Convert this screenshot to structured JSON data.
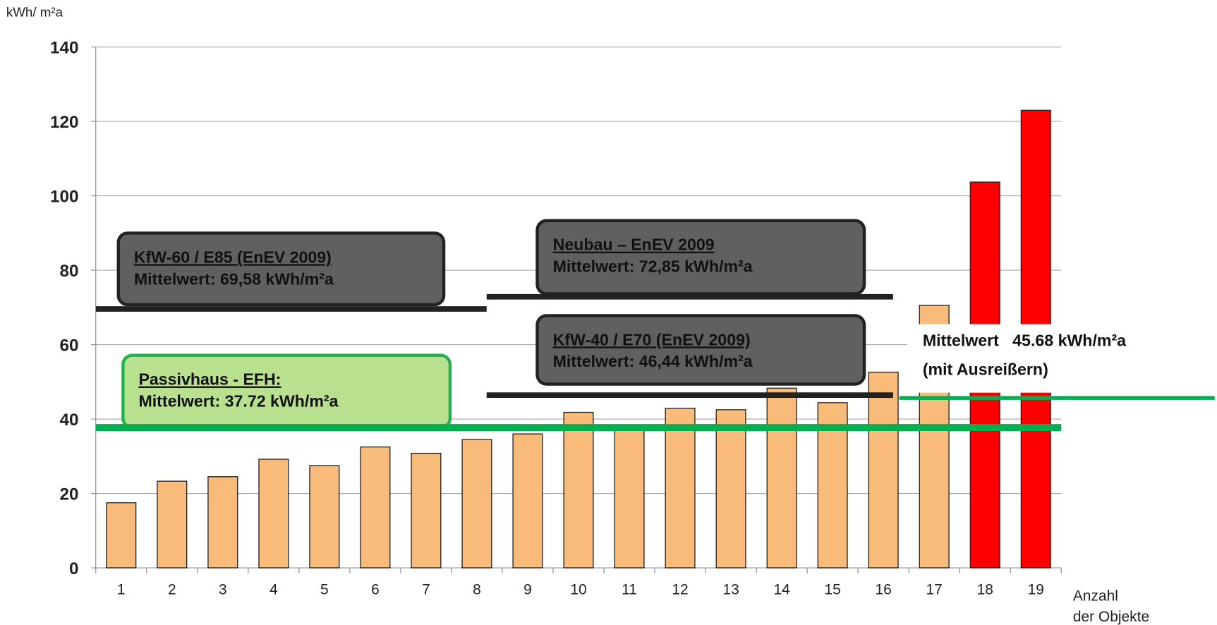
{
  "chart_data": {
    "type": "bar",
    "y_label": "kWh/ m²a",
    "x_label": [
      "Anzahl",
      "der Objekte"
    ],
    "categories": [
      "1",
      "2",
      "3",
      "4",
      "5",
      "6",
      "7",
      "8",
      "9",
      "10",
      "11",
      "12",
      "13",
      "14",
      "15",
      "16",
      "17",
      "18",
      "19"
    ],
    "values": [
      17.5,
      23.3,
      24.5,
      29.2,
      27.5,
      32.5,
      30.8,
      34.5,
      36.0,
      41.8,
      38.0,
      42.9,
      42.5,
      48.3,
      44.4,
      52.6,
      70.6,
      103.7,
      123.0
    ],
    "colors": [
      "#f8bb7a",
      "#f8bb7a",
      "#f8bb7a",
      "#f8bb7a",
      "#f8bb7a",
      "#f8bb7a",
      "#f8bb7a",
      "#f8bb7a",
      "#f8bb7a",
      "#f8bb7a",
      "#f8bb7a",
      "#f8bb7a",
      "#f8bb7a",
      "#f8bb7a",
      "#f8bb7a",
      "#f8bb7a",
      "#f8bb7a",
      "#ff0000",
      "#ff0000"
    ],
    "ylim": [
      0,
      140
    ],
    "yticks": [
      0,
      20,
      40,
      60,
      80,
      100,
      120,
      140
    ],
    "grid": true,
    "reference_lines": [
      {
        "name": "KfW-60 / E85 (EnEV 2009)",
        "label": "Mittelwert: 69,58 kWh/m²a",
        "value": 69.58,
        "color": "#222222"
      },
      {
        "name": "Neubau – EnEV 2009",
        "label": "Mittelwert: 72,85 kWh/m²a",
        "value": 72.85,
        "color": "#222222"
      },
      {
        "name": "KfW-40 / E70 (EnEV 2009)",
        "label": "Mittelwert: 46,44 kWh/m²a",
        "value": 46.44,
        "color": "#222222"
      },
      {
        "name": "Passivhaus - EFH:",
        "label": "Mittelwert: 37.72 kWh/m²a",
        "value": 37.72,
        "color": "#00b050"
      },
      {
        "name": "Mittelwert   45.68 kWh/m²a",
        "label": "(mit Ausreißern)",
        "value": 45.68,
        "color": "#00b050"
      }
    ]
  }
}
